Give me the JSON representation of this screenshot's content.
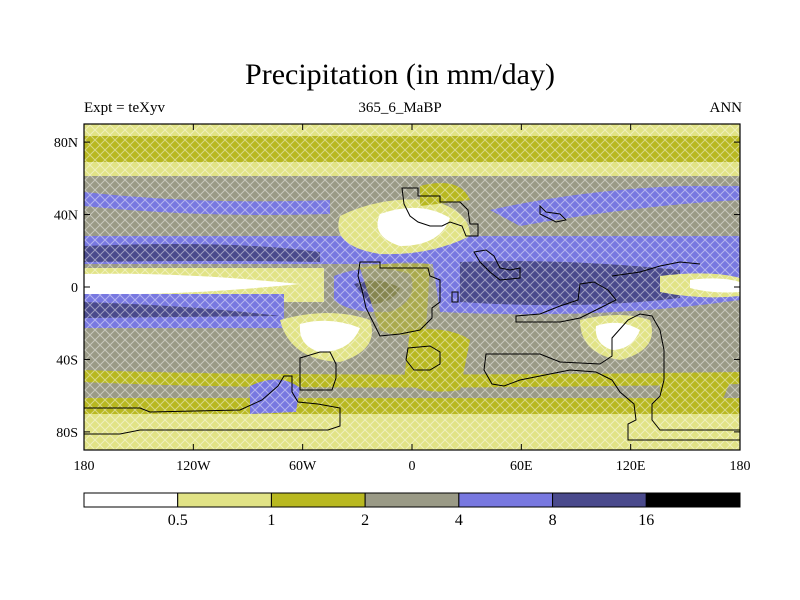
{
  "title": "Precipitation (in mm/day)",
  "subtitle_left": "Expt = teXyv",
  "subtitle_center": "365_6_MaBP",
  "subtitle_right": "ANN",
  "map": {
    "projection": "cylindrical-equidistant",
    "lon_range": [
      -180,
      180
    ],
    "lat_range": [
      -90,
      90
    ],
    "y_ticks": [
      {
        "lat": 80,
        "label": "80N"
      },
      {
        "lat": 40,
        "label": "40N"
      },
      {
        "lat": 0,
        "label": "0"
      },
      {
        "lat": -40,
        "label": "40S"
      },
      {
        "lat": -80,
        "label": "80S"
      }
    ],
    "x_ticks": [
      {
        "lon": -180,
        "label": "180"
      },
      {
        "lon": -120,
        "label": "120W"
      },
      {
        "lon": -60,
        "label": "60W"
      },
      {
        "lon": 0,
        "label": "0"
      },
      {
        "lon": 60,
        "label": "60E"
      },
      {
        "lon": 120,
        "label": "120E"
      },
      {
        "lon": 180,
        "label": "180"
      }
    ]
  },
  "colorbar": {
    "labels": [
      "0.5",
      "1",
      "2",
      "4",
      "8",
      "16"
    ],
    "colors": [
      "#ffffff",
      "#e1e386",
      "#b8b820",
      "#9a9a86",
      "#7878e0",
      "#4a4a8c",
      "#000000"
    ]
  }
}
